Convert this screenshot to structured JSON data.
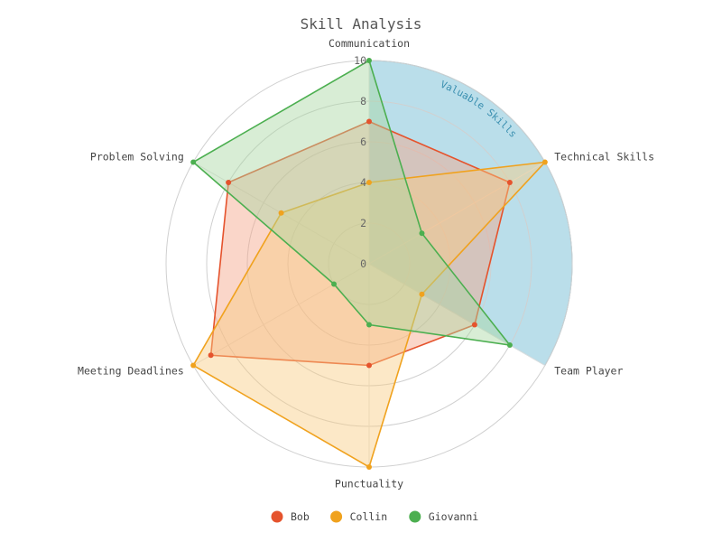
{
  "chart_data": {
    "type": "radar",
    "title": "Skill Analysis",
    "axes": [
      "Communication",
      "Technical Skills",
      "Team Player",
      "Punctuality",
      "Meeting Deadlines",
      "Problem Solving"
    ],
    "rlim": [
      0,
      10
    ],
    "ticks": [
      "0",
      "2",
      "4",
      "6",
      "8",
      "10"
    ],
    "series": [
      {
        "name": "Bob",
        "color": "#e5532d",
        "fill": "#f4a587",
        "values": [
          7,
          8,
          6,
          5,
          9,
          8
        ]
      },
      {
        "name": "Collin",
        "color": "#f0a21e",
        "fill": "#f8cc83",
        "values": [
          4,
          10,
          3,
          10,
          10,
          5
        ]
      },
      {
        "name": "Giovanni",
        "color": "#4caf50",
        "fill": "#a8d8a1",
        "values": [
          10,
          3,
          8,
          3,
          2,
          10
        ]
      }
    ],
    "band": {
      "label": "Valuable Skills",
      "from_axis": "Communication",
      "to_axis": "Team Player",
      "color": "#a9d6e5"
    },
    "legend_position": "bottom"
  }
}
